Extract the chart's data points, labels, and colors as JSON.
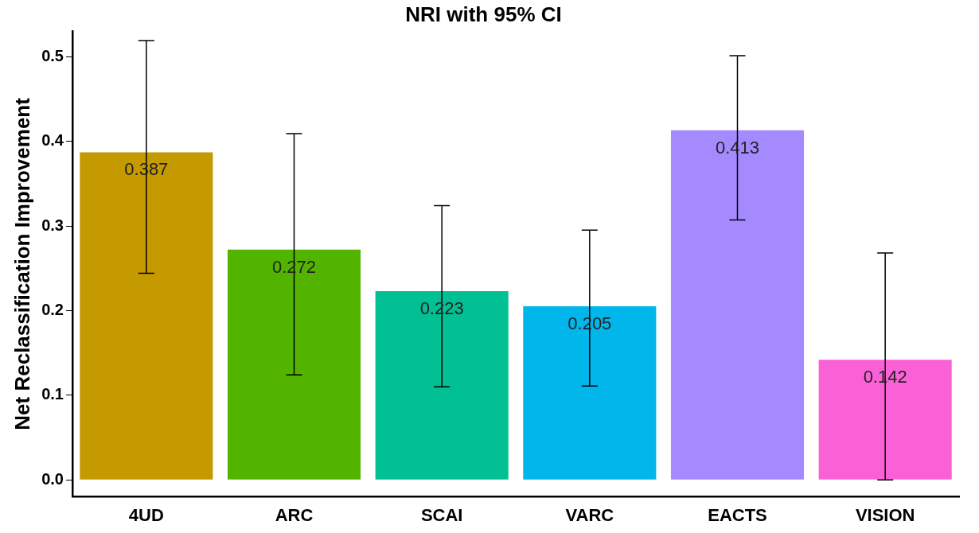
{
  "chart_data": {
    "type": "bar",
    "title": "NRI with 95% CI",
    "ylabel": "Net Reclassification Improvement",
    "categories": [
      "4UD",
      "ARC",
      "SCAI",
      "VARC",
      "EACTS",
      "VISION"
    ],
    "values": [
      0.387,
      0.272,
      0.223,
      0.205,
      0.413,
      0.142
    ],
    "colors": [
      "#c49a00",
      "#53b400",
      "#00c094",
      "#00b6eb",
      "#a58aff",
      "#fb61d7"
    ],
    "errors": [
      [
        0.244,
        0.519
      ],
      [
        0.124,
        0.409
      ],
      [
        0.11,
        0.324
      ],
      [
        0.111,
        0.295
      ],
      [
        0.307,
        0.501
      ],
      [
        0.0,
        0.268
      ]
    ],
    "data_labels": true,
    "ylim": [
      -0.02,
      0.53
    ],
    "yticks": [
      {
        "value": 0,
        "label": "0.0"
      },
      {
        "value": 0.1,
        "label": "0.1"
      },
      {
        "value": 0.2,
        "label": "0.2"
      },
      {
        "value": 0.3,
        "label": "0.3"
      },
      {
        "value": 0.4,
        "label": "0.4"
      },
      {
        "value": 0.5,
        "label": "0.5"
      }
    ],
    "grid": false,
    "legend": false
  }
}
